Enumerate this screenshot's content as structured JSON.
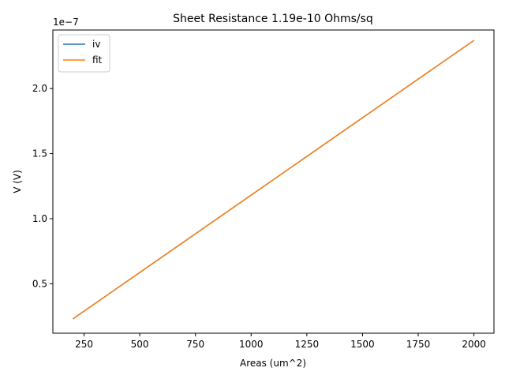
{
  "chart_data": {
    "type": "line",
    "title": "Sheet Resistance 1.19e-10 Ohms/sq",
    "xlabel": "Areas (um^2)",
    "ylabel": "V (V)",
    "y_offset_label": "1e−7",
    "xlim": [
      110,
      2090
    ],
    "ylim": [
      0.12,
      2.45
    ],
    "y_scale_exponent": -7,
    "x_ticks": [
      250,
      500,
      750,
      1000,
      1250,
      1500,
      1750,
      2000
    ],
    "x_tick_labels": [
      "250",
      "500",
      "750",
      "1000",
      "1250",
      "1500",
      "1750",
      "2000"
    ],
    "y_ticks": [
      0.5,
      1.0,
      1.5,
      2.0
    ],
    "y_tick_labels": [
      "0.5",
      "1.0",
      "1.5",
      "2.0"
    ],
    "grid": false,
    "legend": "upper-left",
    "series": [
      {
        "name": "iv",
        "color": "#1f77b4",
        "x": [
          200,
          2000
        ],
        "y": [
          0.23,
          2.37
        ]
      },
      {
        "name": "fit",
        "color": "#ff7f0e",
        "x": [
          200,
          2000
        ],
        "y": [
          0.23,
          2.37
        ]
      }
    ]
  }
}
